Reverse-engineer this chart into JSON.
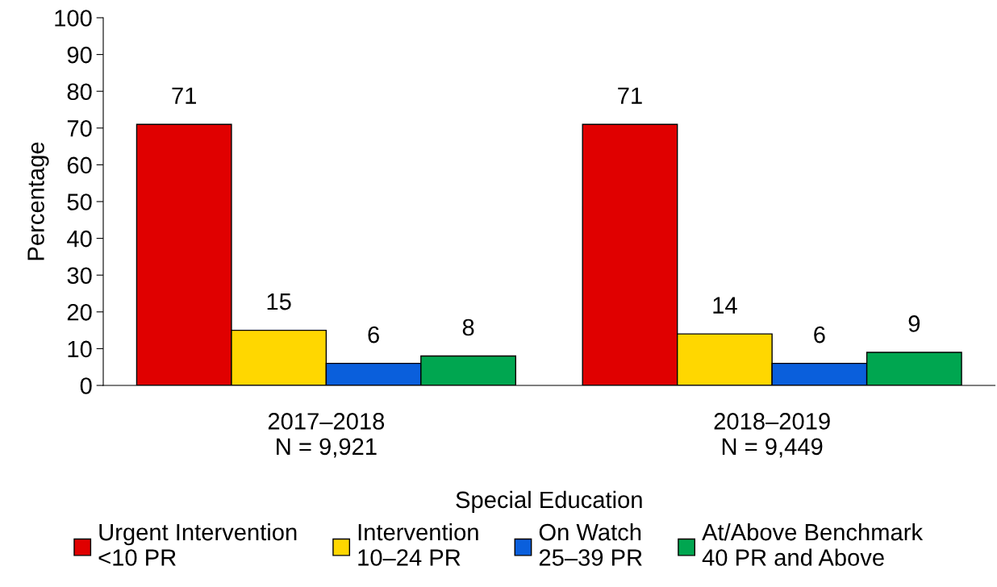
{
  "chart_data": {
    "type": "bar",
    "xlabel": "Special Education",
    "ylabel": "Percentage",
    "categories": [
      "2017–2018\nN = 9,921",
      "2018–2019\nN = 9,449"
    ],
    "series": [
      {
        "name": "Urgent Intervention\n<10 PR",
        "color": "#e00000",
        "values": [
          71,
          71
        ]
      },
      {
        "name": "Intervention\n10–24 PR",
        "color": "#ffd700",
        "values": [
          15,
          14
        ]
      },
      {
        "name": "On Watch\n25–39 PR",
        "color": "#0a5fdc",
        "values": [
          6,
          6
        ]
      },
      {
        "name": "At/Above Benchmark\n40 PR and Above",
        "color": "#00a650",
        "values": [
          8,
          9
        ]
      }
    ],
    "ylim": [
      0,
      100
    ],
    "yticks": [
      0,
      10,
      20,
      30,
      40,
      50,
      60,
      70,
      80,
      90,
      100
    ],
    "data_labels": true,
    "grid": false,
    "legend": "bottom"
  }
}
